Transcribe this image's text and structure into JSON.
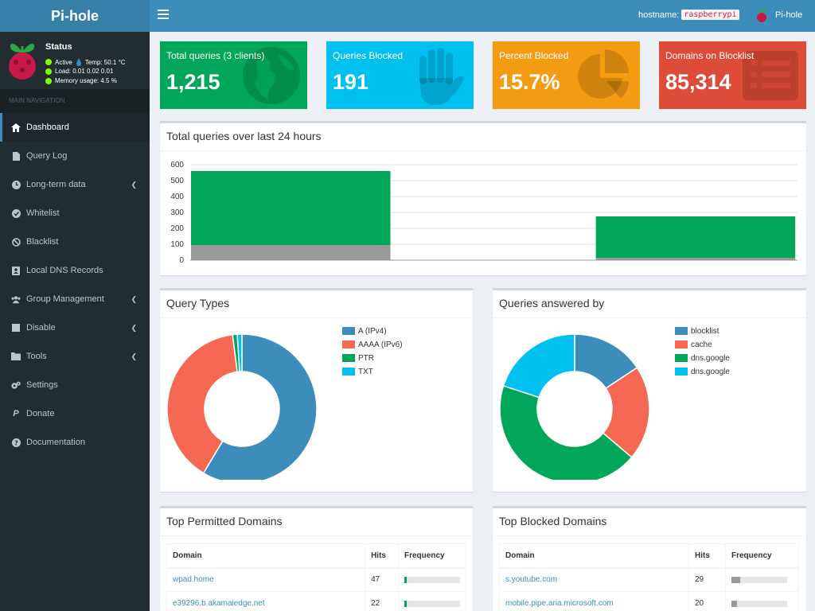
{
  "header": {
    "logo_text": "Pi-hole",
    "hostname_label": "hostname:",
    "hostname_value": "raspberrypi",
    "user_name": "Pi-hole"
  },
  "sidebar": {
    "status": {
      "title": "Status",
      "active": "Active",
      "temp": "Temp: 50.1 °C",
      "load": "Load:  0.01  0.02  0.01",
      "memory": "Memory usage:  4.5 %"
    },
    "nav_header": "MAIN NAVIGATION",
    "items": [
      {
        "label": "Dashboard"
      },
      {
        "label": "Query Log"
      },
      {
        "label": "Long-term data"
      },
      {
        "label": "Whitelist"
      },
      {
        "label": "Blacklist"
      },
      {
        "label": "Local DNS Records"
      },
      {
        "label": "Group Management"
      },
      {
        "label": "Disable"
      },
      {
        "label": "Tools"
      },
      {
        "label": "Settings"
      },
      {
        "label": "Donate"
      },
      {
        "label": "Documentation"
      }
    ]
  },
  "stats": [
    {
      "label": "Total queries (3 clients)",
      "value": "1,215",
      "color": "#00a65a",
      "icon": "globe-icon"
    },
    {
      "label": "Queries Blocked",
      "value": "191",
      "color": "#00c0ef",
      "icon": "hand-icon"
    },
    {
      "label": "Percent Blocked",
      "value": "15.7%",
      "color": "#f39c12",
      "icon": "pie-chart-icon"
    },
    {
      "label": "Domains on Blocklist",
      "value": "85,314",
      "color": "#dd4b39",
      "icon": "list-icon"
    }
  ],
  "queries_panel": {
    "title": "Total queries over last 24 hours"
  },
  "query_types_panel": {
    "title": "Query Types"
  },
  "answered_by_panel": {
    "title": "Queries answered by"
  },
  "chart_data": [
    {
      "type": "bar",
      "title": "Total queries over last 24 hours",
      "stacked": true,
      "ylim": [
        0,
        600
      ],
      "yticks": [
        "600",
        "500",
        "400",
        "300",
        "200",
        "100",
        "0"
      ],
      "grid": true,
      "bins": 3,
      "series": [
        {
          "values": [
            95,
            0,
            15
          ],
          "color": "#999999"
        },
        {
          "values": [
            465,
            0,
            260
          ],
          "color": "#00a65a"
        }
      ]
    },
    {
      "type": "pie",
      "donut": true,
      "title": "Query Types",
      "legend_position": "right",
      "labels": [
        "A (IPv4)",
        "AAAA (IPv6)",
        "PTR",
        "TXT"
      ],
      "values": [
        58.6,
        39.4,
        1.0,
        1.0
      ],
      "colors": [
        "#3c8dbc",
        "#f56954",
        "#00a65a",
        "#00c0ef"
      ]
    },
    {
      "type": "pie",
      "donut": true,
      "title": "Queries answered by",
      "legend_position": "right",
      "labels": [
        "blocklist",
        "cache",
        "dns.google",
        "dns.google"
      ],
      "values": [
        15.7,
        20.5,
        43.8,
        20.0
      ],
      "colors": [
        "#3c8dbc",
        "#f56954",
        "#00a65a",
        "#00c0ef"
      ]
    }
  ],
  "top_permitted": {
    "title": "Top Permitted Domains",
    "columns": [
      "Domain",
      "Hits",
      "Frequency"
    ],
    "rows": [
      {
        "domain": "wpad.home",
        "hits": "47",
        "frequency": 0.04,
        "bar_color": "#00a65a"
      },
      {
        "domain": "e39296.b.akamaiedge.net",
        "hits": "22",
        "frequency": 0.02,
        "bar_color": "#00a65a"
      }
    ]
  },
  "top_blocked": {
    "title": "Top Blocked Domains",
    "columns": [
      "Domain",
      "Hits",
      "Frequency"
    ],
    "rows": [
      {
        "domain": "s.youtube.com",
        "hits": "29",
        "frequency": 0.15,
        "bar_color": "#999999"
      },
      {
        "domain": "mobile.pipe.aria.microsoft.com",
        "hits": "20",
        "frequency": 0.1,
        "bar_color": "#999999"
      }
    ]
  }
}
